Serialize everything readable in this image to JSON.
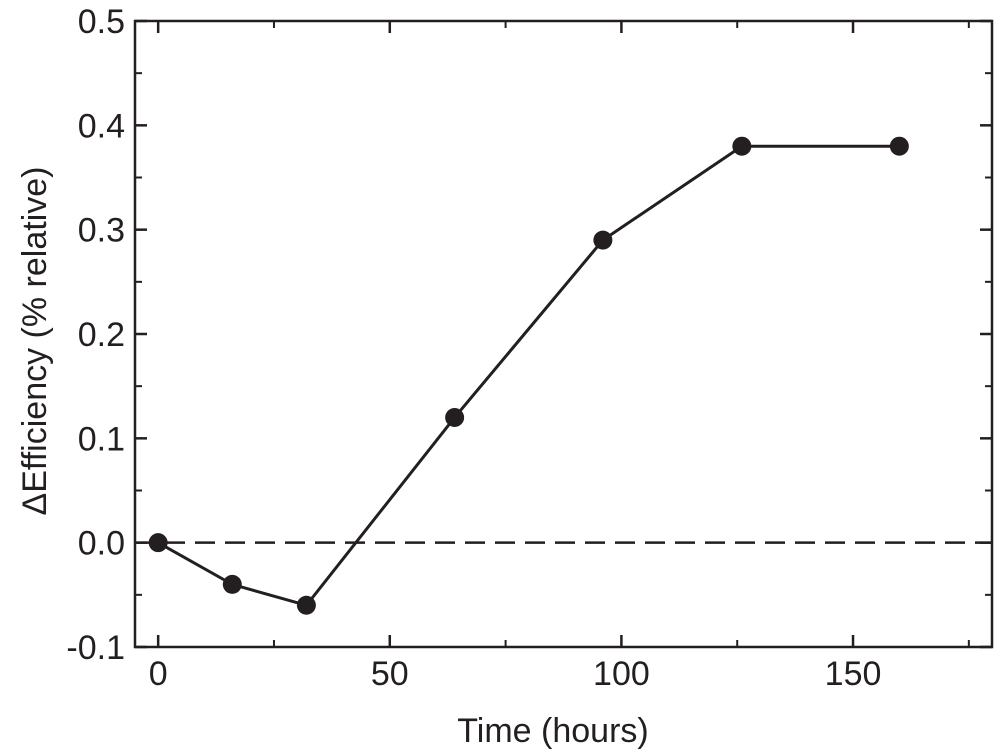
{
  "chart_data": {
    "type": "line",
    "title": "",
    "xlabel": "Time (hours)",
    "ylabel": "ΔEfficiency (% relative)",
    "xlim": [
      -5,
      180
    ],
    "ylim": [
      -0.1,
      0.5
    ],
    "x_ticks": [
      0,
      50,
      100,
      150
    ],
    "x_tick_labels": [
      "0",
      "50",
      "100",
      "150"
    ],
    "y_ticks": [
      -0.1,
      0.0,
      0.1,
      0.2,
      0.3,
      0.4,
      0.5
    ],
    "y_tick_labels": [
      "-0.1",
      "0.0",
      "0.1",
      "0.2",
      "0.3",
      "0.4",
      "0.5"
    ],
    "grid": false,
    "legend": "none",
    "series": [
      {
        "x": [
          0,
          16,
          32,
          64,
          96,
          126,
          160
        ],
        "y": [
          0.0,
          -0.04,
          -0.06,
          0.12,
          0.29,
          0.38,
          0.38
        ],
        "marker": "filled-circle",
        "color": "#231f20"
      }
    ],
    "reference_line": {
      "y": 0.0,
      "style": "dashed"
    }
  }
}
